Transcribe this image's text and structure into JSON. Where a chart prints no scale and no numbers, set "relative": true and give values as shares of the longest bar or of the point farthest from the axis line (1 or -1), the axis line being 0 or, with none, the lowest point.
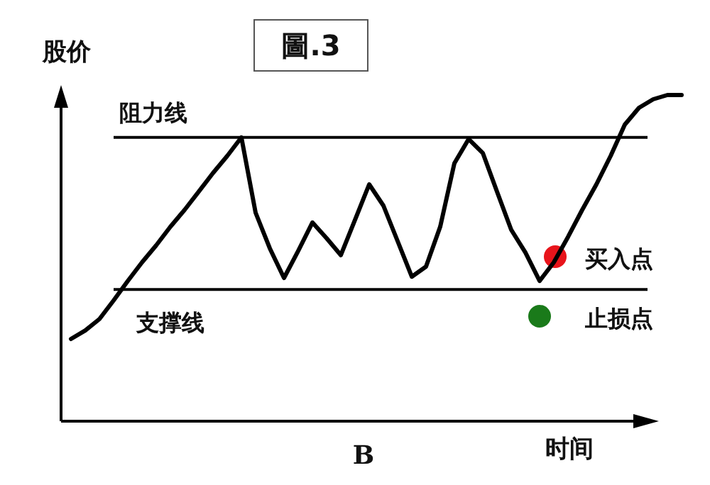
{
  "chart_data": {
    "type": "line",
    "title": "圖.3",
    "ylabel": "股价",
    "xlabel": "时间",
    "relative": true,
    "categories": [
      null,
      null,
      null,
      null,
      null,
      null,
      null,
      null,
      null,
      null,
      null,
      null,
      null,
      null,
      null,
      null,
      null,
      null,
      null,
      null,
      null,
      null,
      null,
      null,
      null,
      null,
      null,
      null,
      null,
      null,
      null,
      null,
      null,
      null,
      null,
      null,
      null,
      null,
      null,
      null,
      null,
      null,
      null,
      null
    ],
    "series": [
      {
        "color": "#000000",
        "values": [
          0.252,
          0.278,
          0.313,
          0.37,
          0.43,
          0.487,
          0.539,
          0.596,
          0.648,
          0.704,
          0.761,
          0.813,
          0.87,
          0.639,
          0.53,
          0.439,
          0.522,
          0.609,
          0.561,
          0.509,
          0.617,
          0.726,
          0.661,
          0.552,
          0.443,
          0.474,
          0.596,
          0.791,
          0.865,
          0.822,
          0.704,
          0.587,
          0.517,
          0.43,
          0.487,
          0.565,
          0.648,
          0.726,
          0.813,
          0.909,
          0.961,
          0.987,
          1.0,
          1.0
        ]
      }
    ],
    "ref_lines": [
      {
        "axis": "y",
        "value": 0.87,
        "label": "阻力线",
        "color": "#000000"
      },
      {
        "axis": "y",
        "value": 0.404,
        "label": "支撑线",
        "color": "#000000"
      }
    ],
    "annotations": [
      "买入点",
      "止损点",
      "B"
    ]
  }
}
